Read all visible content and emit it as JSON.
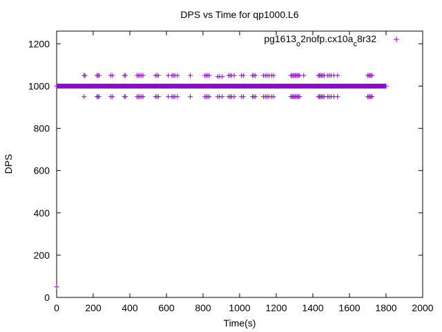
{
  "chart_data": {
    "type": "scatter",
    "title": "DPS vs Time for qp1000.L6",
    "xlabel": "Time(s)",
    "ylabel": "DPS",
    "xlim": [
      0,
      2000
    ],
    "ylim": [
      0,
      1260
    ],
    "xticks": [
      0,
      200,
      400,
      600,
      800,
      1000,
      1200,
      1400,
      1600,
      1800,
      2000
    ],
    "yticks": [
      0,
      200,
      400,
      600,
      800,
      1000,
      1200
    ],
    "grid": false,
    "legend_position": "top-right",
    "marker": "+",
    "color": "#9400d3",
    "series": [
      {
        "name": "pg1613_o2nofp.cx10a_c8r32",
        "dense_band": {
          "y": 1000,
          "x_start": 0,
          "x_end": 1800,
          "step": 3
        },
        "points": [
          {
            "x": 0,
            "y": 50
          },
          {
            "x": 150,
            "y": 1050
          },
          {
            "x": 155,
            "y": 1050
          },
          {
            "x": 220,
            "y": 1050
          },
          {
            "x": 226,
            "y": 1050
          },
          {
            "x": 232,
            "y": 1050
          },
          {
            "x": 295,
            "y": 1050
          },
          {
            "x": 305,
            "y": 1050
          },
          {
            "x": 370,
            "y": 1050
          },
          {
            "x": 376,
            "y": 1050
          },
          {
            "x": 440,
            "y": 1050
          },
          {
            "x": 448,
            "y": 1050
          },
          {
            "x": 456,
            "y": 1050
          },
          {
            "x": 464,
            "y": 1050
          },
          {
            "x": 472,
            "y": 1050
          },
          {
            "x": 540,
            "y": 1050
          },
          {
            "x": 548,
            "y": 1050
          },
          {
            "x": 556,
            "y": 1050
          },
          {
            "x": 610,
            "y": 1050
          },
          {
            "x": 630,
            "y": 1050
          },
          {
            "x": 638,
            "y": 1050
          },
          {
            "x": 646,
            "y": 1050
          },
          {
            "x": 660,
            "y": 1050
          },
          {
            "x": 730,
            "y": 1050
          },
          {
            "x": 810,
            "y": 1050
          },
          {
            "x": 818,
            "y": 1050
          },
          {
            "x": 826,
            "y": 1050
          },
          {
            "x": 834,
            "y": 1050
          },
          {
            "x": 880,
            "y": 1045
          },
          {
            "x": 890,
            "y": 1045
          },
          {
            "x": 905,
            "y": 1045
          },
          {
            "x": 940,
            "y": 1050
          },
          {
            "x": 948,
            "y": 1050
          },
          {
            "x": 956,
            "y": 1050
          },
          {
            "x": 970,
            "y": 1050
          },
          {
            "x": 1010,
            "y": 1050
          },
          {
            "x": 1020,
            "y": 1050
          },
          {
            "x": 1070,
            "y": 1050
          },
          {
            "x": 1078,
            "y": 1050
          },
          {
            "x": 1086,
            "y": 1050
          },
          {
            "x": 1130,
            "y": 1050
          },
          {
            "x": 1140,
            "y": 1050
          },
          {
            "x": 1150,
            "y": 1050
          },
          {
            "x": 1160,
            "y": 1050
          },
          {
            "x": 1175,
            "y": 1050
          },
          {
            "x": 1185,
            "y": 1050
          },
          {
            "x": 1280,
            "y": 1050
          },
          {
            "x": 1286,
            "y": 1050
          },
          {
            "x": 1292,
            "y": 1050
          },
          {
            "x": 1298,
            "y": 1050
          },
          {
            "x": 1304,
            "y": 1050
          },
          {
            "x": 1310,
            "y": 1050
          },
          {
            "x": 1316,
            "y": 1050
          },
          {
            "x": 1322,
            "y": 1050
          },
          {
            "x": 1328,
            "y": 1050
          },
          {
            "x": 1350,
            "y": 1050
          },
          {
            "x": 1430,
            "y": 1050
          },
          {
            "x": 1436,
            "y": 1050
          },
          {
            "x": 1442,
            "y": 1050
          },
          {
            "x": 1448,
            "y": 1050
          },
          {
            "x": 1455,
            "y": 1050
          },
          {
            "x": 1462,
            "y": 1050
          },
          {
            "x": 1480,
            "y": 1050
          },
          {
            "x": 1490,
            "y": 1050
          },
          {
            "x": 1500,
            "y": 1050
          },
          {
            "x": 1515,
            "y": 1050
          },
          {
            "x": 1535,
            "y": 1050
          },
          {
            "x": 1700,
            "y": 1050
          },
          {
            "x": 1706,
            "y": 1050
          },
          {
            "x": 1712,
            "y": 1050
          },
          {
            "x": 1718,
            "y": 1050
          },
          {
            "x": 1724,
            "y": 1050
          },
          {
            "x": 150,
            "y": 950
          },
          {
            "x": 220,
            "y": 950
          },
          {
            "x": 226,
            "y": 950
          },
          {
            "x": 232,
            "y": 950
          },
          {
            "x": 295,
            "y": 950
          },
          {
            "x": 305,
            "y": 950
          },
          {
            "x": 370,
            "y": 950
          },
          {
            "x": 376,
            "y": 950
          },
          {
            "x": 440,
            "y": 950
          },
          {
            "x": 448,
            "y": 950
          },
          {
            "x": 456,
            "y": 950
          },
          {
            "x": 464,
            "y": 950
          },
          {
            "x": 472,
            "y": 950
          },
          {
            "x": 540,
            "y": 950
          },
          {
            "x": 548,
            "y": 950
          },
          {
            "x": 556,
            "y": 950
          },
          {
            "x": 610,
            "y": 950
          },
          {
            "x": 630,
            "y": 950
          },
          {
            "x": 638,
            "y": 950
          },
          {
            "x": 646,
            "y": 950
          },
          {
            "x": 660,
            "y": 950
          },
          {
            "x": 730,
            "y": 950
          },
          {
            "x": 810,
            "y": 950
          },
          {
            "x": 818,
            "y": 950
          },
          {
            "x": 826,
            "y": 950
          },
          {
            "x": 834,
            "y": 950
          },
          {
            "x": 880,
            "y": 950
          },
          {
            "x": 890,
            "y": 950
          },
          {
            "x": 905,
            "y": 950
          },
          {
            "x": 940,
            "y": 950
          },
          {
            "x": 948,
            "y": 950
          },
          {
            "x": 956,
            "y": 950
          },
          {
            "x": 970,
            "y": 950
          },
          {
            "x": 1010,
            "y": 950
          },
          {
            "x": 1020,
            "y": 950
          },
          {
            "x": 1070,
            "y": 950
          },
          {
            "x": 1078,
            "y": 950
          },
          {
            "x": 1086,
            "y": 950
          },
          {
            "x": 1130,
            "y": 950
          },
          {
            "x": 1140,
            "y": 950
          },
          {
            "x": 1150,
            "y": 950
          },
          {
            "x": 1160,
            "y": 950
          },
          {
            "x": 1175,
            "y": 950
          },
          {
            "x": 1185,
            "y": 950
          },
          {
            "x": 1280,
            "y": 950
          },
          {
            "x": 1286,
            "y": 950
          },
          {
            "x": 1292,
            "y": 950
          },
          {
            "x": 1298,
            "y": 950
          },
          {
            "x": 1304,
            "y": 950
          },
          {
            "x": 1310,
            "y": 950
          },
          {
            "x": 1316,
            "y": 950
          },
          {
            "x": 1322,
            "y": 950
          },
          {
            "x": 1328,
            "y": 950
          },
          {
            "x": 1430,
            "y": 950
          },
          {
            "x": 1436,
            "y": 950
          },
          {
            "x": 1442,
            "y": 950
          },
          {
            "x": 1448,
            "y": 950
          },
          {
            "x": 1455,
            "y": 950
          },
          {
            "x": 1462,
            "y": 950
          },
          {
            "x": 1480,
            "y": 950
          },
          {
            "x": 1490,
            "y": 950
          },
          {
            "x": 1500,
            "y": 950
          },
          {
            "x": 1515,
            "y": 950
          },
          {
            "x": 1535,
            "y": 950
          },
          {
            "x": 1700,
            "y": 950
          },
          {
            "x": 1706,
            "y": 950
          },
          {
            "x": 1712,
            "y": 950
          },
          {
            "x": 1718,
            "y": 950
          },
          {
            "x": 1724,
            "y": 950
          }
        ]
      }
    ]
  }
}
